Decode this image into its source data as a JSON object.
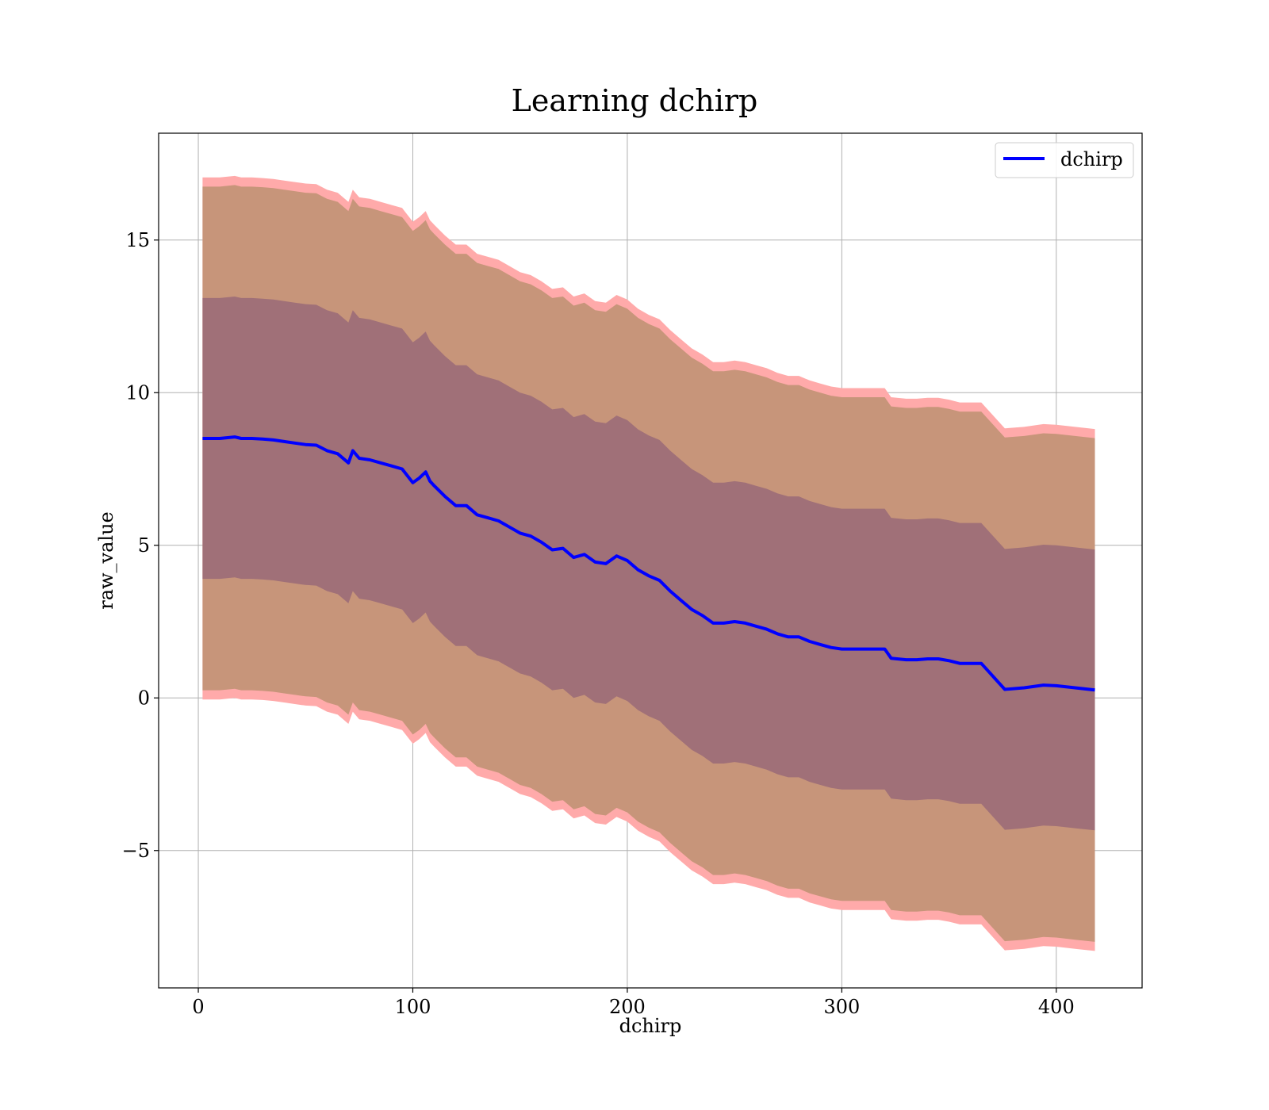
{
  "chart_data": {
    "type": "line",
    "title": "Learning dchirp",
    "xlabel": "dchirp",
    "ylabel": "raw_value",
    "xlim": [
      -18.5,
      440
    ],
    "ylim": [
      -9.5,
      18.5
    ],
    "xticks": [
      0,
      100,
      200,
      300,
      400
    ],
    "yticks": [
      -5,
      0,
      5,
      10,
      15
    ],
    "xtick_labels": [
      "0",
      "100",
      "200",
      "300",
      "400"
    ],
    "ytick_labels": [
      "−5",
      "0",
      "5",
      "10",
      "15"
    ],
    "grid": true,
    "legend": {
      "position": "top-right",
      "entries": [
        "dchirp"
      ]
    },
    "colors": {
      "line": "#0000ff",
      "outer_band": "#ffaaaa",
      "middle_band": "#c7957a",
      "inner_band": "#a07078"
    },
    "series": [
      {
        "name": "dchirp",
        "x": [
          2,
          10,
          17,
          20,
          25,
          30,
          35,
          40,
          45,
          50,
          55,
          60,
          65,
          70,
          72,
          75,
          80,
          85,
          90,
          95,
          100,
          103,
          106,
          108,
          110,
          115,
          120,
          125,
          130,
          135,
          140,
          145,
          150,
          155,
          160,
          165,
          170,
          175,
          180,
          185,
          190,
          195,
          200,
          205,
          210,
          215,
          220,
          225,
          230,
          235,
          240,
          245,
          250,
          255,
          260,
          265,
          270,
          275,
          280,
          285,
          290,
          295,
          300,
          305,
          310,
          315,
          320,
          323,
          330,
          335,
          340,
          345,
          350,
          355,
          360,
          365,
          376,
          385,
          394,
          400,
          410,
          418
        ],
        "y": [
          8.5,
          8.5,
          8.55,
          8.5,
          8.5,
          8.48,
          8.45,
          8.4,
          8.35,
          8.3,
          8.28,
          8.1,
          8.0,
          7.7,
          8.1,
          7.85,
          7.8,
          7.7,
          7.6,
          7.5,
          7.05,
          7.2,
          7.4,
          7.1,
          6.95,
          6.6,
          6.3,
          6.3,
          6.0,
          5.9,
          5.8,
          5.6,
          5.4,
          5.3,
          5.1,
          4.85,
          4.9,
          4.6,
          4.7,
          4.45,
          4.4,
          4.65,
          4.5,
          4.2,
          4.0,
          3.85,
          3.5,
          3.2,
          2.9,
          2.7,
          2.45,
          2.45,
          2.5,
          2.45,
          2.35,
          2.25,
          2.1,
          2.0,
          2.0,
          1.85,
          1.75,
          1.65,
          1.6,
          1.6,
          1.6,
          1.6,
          1.6,
          1.3,
          1.25,
          1.25,
          1.28,
          1.28,
          1.22,
          1.13,
          1.13,
          1.13,
          0.28,
          0.33,
          0.42,
          0.4,
          0.32,
          0.26
        ],
        "inner_halfwidth": 4.6,
        "middle_halfwidth": 8.25,
        "outer_halfwidth": 8.55
      }
    ]
  }
}
